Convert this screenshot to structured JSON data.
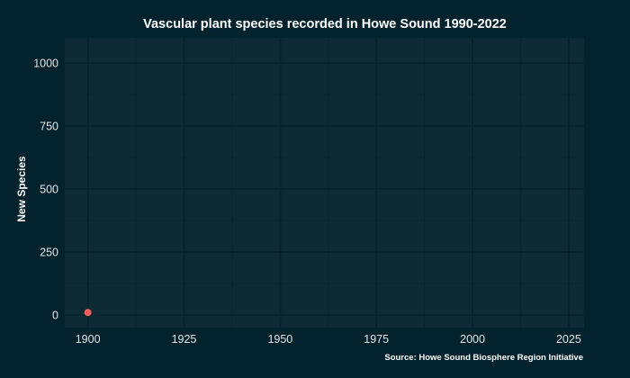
{
  "chart_data": {
    "type": "scatter",
    "title": "Vascular plant species recorded in Howe Sound 1990-2022",
    "xlabel": "",
    "ylabel": "New Species",
    "caption": "Source: Howe Sound Biosphere Region Initiative",
    "xlim": [
      1894,
      2029
    ],
    "ylim": [
      -50,
      1100
    ],
    "xticks": [
      1900,
      1925,
      1950,
      1975,
      2000,
      2025
    ],
    "yticks": [
      0,
      250,
      500,
      750,
      1000
    ],
    "grid": true,
    "series": [
      {
        "color": "#f0605c",
        "points": [
          {
            "x": 1900,
            "y": 10
          }
        ]
      }
    ]
  },
  "colors": {
    "background": "#02222d",
    "panel": "#0e2a35",
    "gridline": "#05222d",
    "point": "#f0605c"
  }
}
